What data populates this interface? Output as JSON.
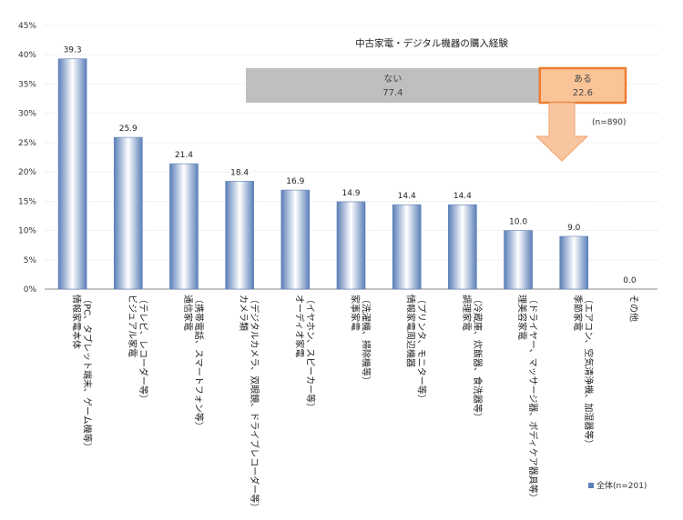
{
  "chart_data": {
    "type": "bar",
    "title": "",
    "xlabel": "",
    "ylabel": "",
    "ylim": [
      0,
      45
    ],
    "yticks": [
      "0%",
      "5%",
      "10%",
      "15%",
      "20%",
      "25%",
      "30%",
      "35%",
      "40%",
      "45%"
    ],
    "grid": true,
    "categories": [
      "情報家電本体\n（PC、タブレット端末、ゲーム機等）",
      "ビジュアル家電\n（テレビ、レコーダー等）",
      "通信家電\n（携帯電話、スマートフォン等）",
      "カメラ類\n（デジタルカメラ、双眼鏡、ドライブレコーダー等）",
      "オーディオ家電\n（イヤホン、スピーカー等）",
      "家事家電\n（洗濯機、掃除機等）",
      "情報家電周辺機器\n（プリンタ、モニター等）",
      "調理家電\n（冷蔵庫、炊飯器、食洗器等）",
      "理美容家電\n（ドライヤー、マッサージ器、ボディケア器具等）",
      "季節家電\n（エアコン、空気清浄機、加湿器等）",
      "その他"
    ],
    "series": [
      {
        "name": "全体(n=201)",
        "values": [
          39.3,
          25.9,
          21.4,
          18.4,
          16.9,
          14.9,
          14.4,
          14.4,
          10.0,
          9.0,
          0.0
        ]
      }
    ],
    "value_labels": [
      "39.3",
      "25.9",
      "21.4",
      "18.4",
      "16.9",
      "14.9",
      "14.4",
      "14.4",
      "10.0",
      "9.0",
      "0.0"
    ],
    "legend_position": "bottom-right",
    "inset": {
      "title": "中古家電・デジタル機器の購入経験",
      "segments": [
        {
          "label": "ない",
          "value": 77.4,
          "value_text": "77.4"
        },
        {
          "label": "ある",
          "value": 22.6,
          "value_text": "22.6"
        }
      ],
      "note": "(n=890)"
    }
  },
  "colors": {
    "bar_dark": "#5b7fb8",
    "bar_light": "#ffffff",
    "inset_no": "#bfbfbf",
    "inset_yes": "#f9c598",
    "inset_yes_border": "#ed7d31",
    "arrow_fill": "#f7c6a0",
    "arrow_stroke": "#f0a36a"
  }
}
